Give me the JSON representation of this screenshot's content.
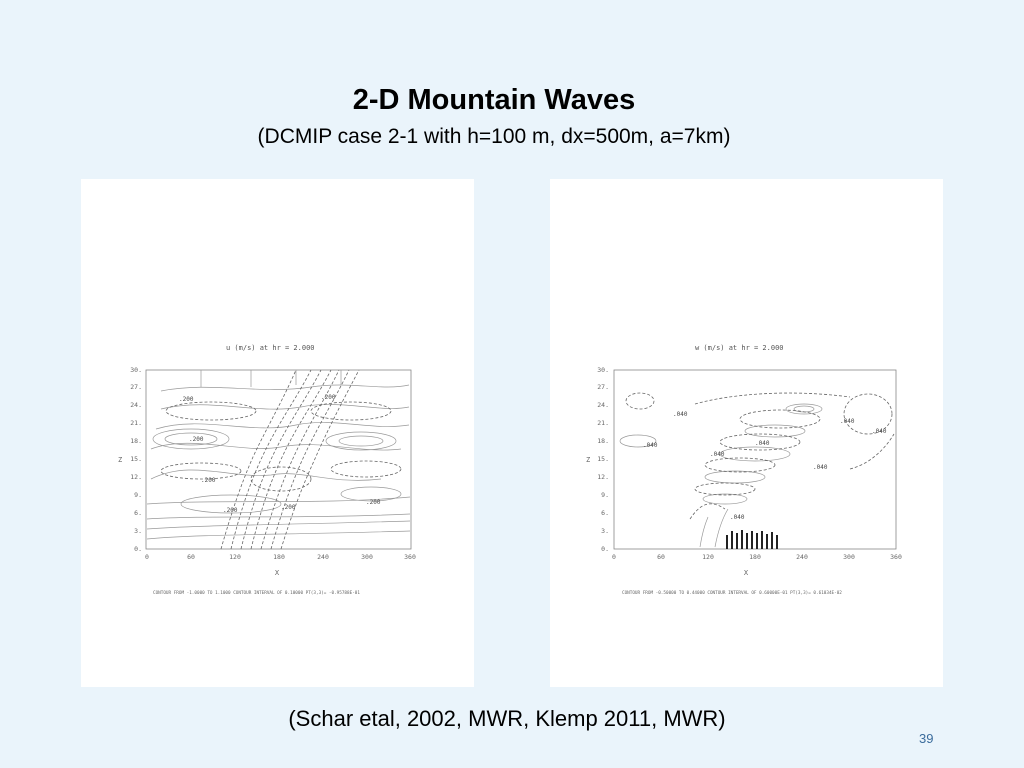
{
  "slide": {
    "title": "2-D Mountain Waves",
    "subtitle": "(DCMIP case 2-1 with h=100 m, dx=500m, a=7km)",
    "citation": "(Schar etal, 2002, MWR, Klemp 2011, MWR)",
    "page_number": "39"
  },
  "chart_data": [
    {
      "type": "contour",
      "title": "u (m/s)        at  hr =  2.000",
      "xlabel": "X",
      "ylabel": "Z",
      "xlim": [
        0,
        360
      ],
      "ylim": [
        0,
        30
      ],
      "x_ticks": [
        "0",
        "60",
        "120",
        "180",
        "240",
        "300",
        "360"
      ],
      "y_ticks": [
        "0.",
        "3.",
        "6.",
        "9.",
        "12.",
        "15.",
        "18.",
        "21.",
        "24.",
        "27.",
        "30."
      ],
      "contour_labels": [
        ".200",
        ".200",
        ".200",
        ".200",
        ".200",
        ".200",
        ".200"
      ],
      "footer": "CONTOUR FROM  -1.0000    TO   1.1000    CONTOUR INTERVAL OF  0.10000    PT(3,3)= -0.95788E-01"
    },
    {
      "type": "contour",
      "title": "w (m/s)        at  hr =  2.000",
      "xlabel": "X",
      "ylabel": "Z",
      "xlim": [
        0,
        360
      ],
      "ylim": [
        0,
        30
      ],
      "x_ticks": [
        "0",
        "60",
        "120",
        "180",
        "240",
        "300",
        "360"
      ],
      "y_ticks": [
        "0.",
        "3.",
        "6.",
        "9.",
        "12.",
        "15.",
        "18.",
        "21.",
        "24.",
        "27.",
        "30."
      ],
      "contour_labels": [
        ".040",
        ".040",
        ".040",
        ".040",
        ".040",
        ".040",
        ".040",
        ".040"
      ],
      "footer": "CONTOUR FROM -0.50000    TO  0.44000    CONTOUR INTERVAL OF  0.60000E-01 PT(3,3)=  0.61034E-02"
    }
  ]
}
